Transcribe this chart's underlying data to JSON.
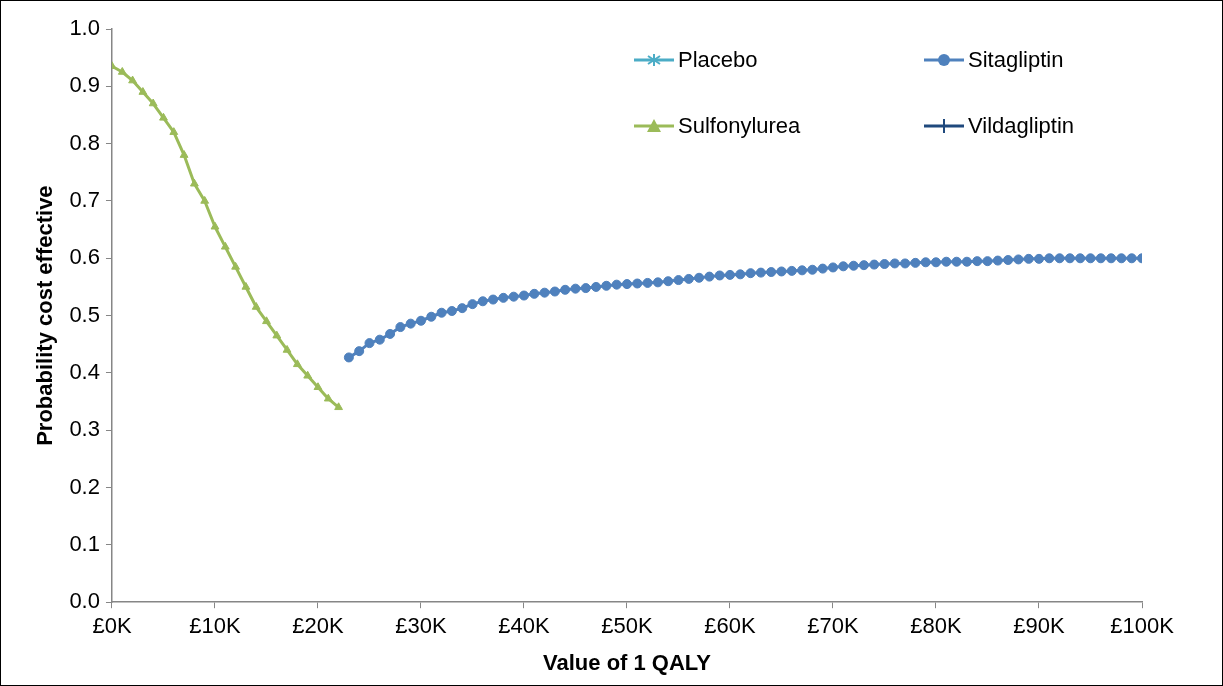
{
  "chart_data": {
    "type": "line",
    "xlabel": "Value of 1 QALY",
    "ylabel": "Probability cost effective",
    "xlim": [
      0,
      100
    ],
    "ylim": [
      0,
      1
    ],
    "xticks": [
      {
        "value": 0,
        "label": "£0K"
      },
      {
        "value": 10,
        "label": "£10K"
      },
      {
        "value": 20,
        "label": "£20K"
      },
      {
        "value": 30,
        "label": "£30K"
      },
      {
        "value": 40,
        "label": "£40K"
      },
      {
        "value": 50,
        "label": "£50K"
      },
      {
        "value": 60,
        "label": "£60K"
      },
      {
        "value": 70,
        "label": "£70K"
      },
      {
        "value": 80,
        "label": "£80K"
      },
      {
        "value": 90,
        "label": "£90K"
      },
      {
        "value": 100,
        "label": "£100K"
      }
    ],
    "yticks": [
      {
        "value": 0,
        "label": "0.0"
      },
      {
        "value": 0.1,
        "label": "0.1"
      },
      {
        "value": 0.2,
        "label": "0.2"
      },
      {
        "value": 0.3,
        "label": "0.3"
      },
      {
        "value": 0.4,
        "label": "0.4"
      },
      {
        "value": 0.5,
        "label": "0.5"
      },
      {
        "value": 0.6,
        "label": "0.6"
      },
      {
        "value": 0.7,
        "label": "0.7"
      },
      {
        "value": 0.8,
        "label": "0.8"
      },
      {
        "value": 0.9,
        "label": "0.9"
      },
      {
        "value": 1,
        "label": "1.0"
      }
    ],
    "grid": false,
    "legend": "top right",
    "line_style": "solid",
    "series": [
      {
        "name": "Placebo",
        "color": "#4bacc6",
        "marker": "star"
      },
      {
        "name": "Sitagliptin",
        "color": "#4f81bd",
        "marker": "circle",
        "x": [
          23,
          24,
          25,
          26,
          27,
          28,
          29,
          30,
          31,
          32,
          33,
          34,
          35,
          36,
          37,
          38,
          39,
          40,
          41,
          42,
          43,
          44,
          45,
          46,
          47,
          48,
          49,
          50,
          51,
          52,
          53,
          54,
          55,
          56,
          57,
          58,
          59,
          60,
          61,
          62,
          63,
          64,
          65,
          66,
          67,
          68,
          69,
          70,
          71,
          72,
          73,
          74,
          75,
          76,
          77,
          78,
          79,
          80,
          81,
          82,
          83,
          84,
          85,
          86,
          87,
          88,
          89,
          90,
          91,
          92,
          93,
          94,
          95,
          96,
          97,
          98,
          99,
          100
        ],
        "values": [
          0.427,
          0.438,
          0.452,
          0.458,
          0.468,
          0.48,
          0.486,
          0.491,
          0.498,
          0.505,
          0.508,
          0.513,
          0.52,
          0.525,
          0.528,
          0.531,
          0.533,
          0.535,
          0.538,
          0.54,
          0.542,
          0.545,
          0.547,
          0.548,
          0.55,
          0.552,
          0.554,
          0.555,
          0.556,
          0.557,
          0.558,
          0.56,
          0.562,
          0.564,
          0.566,
          0.568,
          0.57,
          0.571,
          0.572,
          0.574,
          0.575,
          0.576,
          0.577,
          0.578,
          0.579,
          0.58,
          0.582,
          0.584,
          0.586,
          0.587,
          0.588,
          0.589,
          0.59,
          0.591,
          0.591,
          0.592,
          0.593,
          0.593,
          0.594,
          0.594,
          0.594,
          0.595,
          0.595,
          0.596,
          0.597,
          0.598,
          0.599,
          0.599,
          0.6,
          0.6,
          0.6,
          0.6,
          0.6,
          0.6,
          0.6,
          0.6,
          0.6,
          0.6
        ]
      },
      {
        "name": "Sulfonylurea",
        "color": "#9bbb59",
        "marker": "triangle",
        "x": [
          0,
          1,
          2,
          3,
          4,
          5,
          6,
          7,
          8,
          9,
          10,
          11,
          12,
          13,
          14,
          15,
          16,
          17,
          18,
          19,
          20,
          21,
          22
        ],
        "values": [
          0.935,
          0.925,
          0.91,
          0.89,
          0.87,
          0.845,
          0.82,
          0.78,
          0.73,
          0.7,
          0.655,
          0.62,
          0.585,
          0.55,
          0.515,
          0.49,
          0.465,
          0.44,
          0.415,
          0.395,
          0.375,
          0.355,
          0.34
        ]
      },
      {
        "name": "Vildagliptin",
        "color": "#1f497d",
        "marker": "cross"
      }
    ]
  }
}
